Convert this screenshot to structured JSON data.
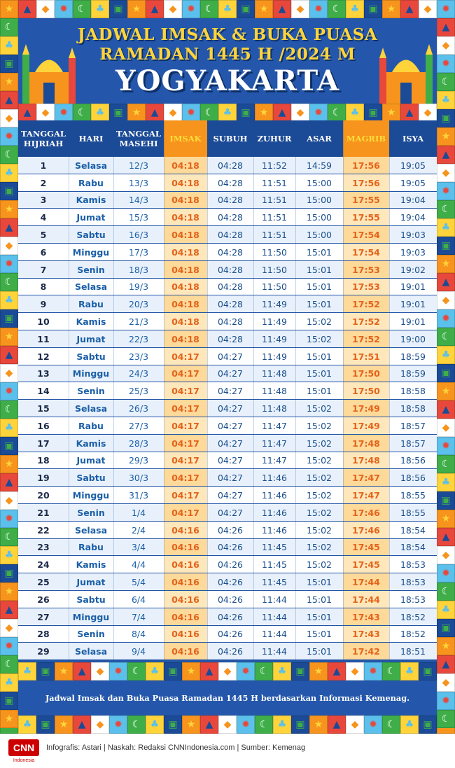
{
  "header": {
    "title_line1": "JADWAL IMSAK & BUKA PUASA",
    "title_line2": "RAMADAN 1445 H /2024 M",
    "city": "YOGYAKARTA"
  },
  "table": {
    "columns": [
      {
        "key": "hijri",
        "label": "TANGGAL\nHIJRIAH",
        "highlight": false
      },
      {
        "key": "hari",
        "label": "HARI",
        "highlight": false
      },
      {
        "key": "masehi",
        "label": "TANGGAL\nMASEHI",
        "highlight": false
      },
      {
        "key": "imsak",
        "label": "IMSAK",
        "highlight": true
      },
      {
        "key": "subuh",
        "label": "SUBUH",
        "highlight": false
      },
      {
        "key": "zuhur",
        "label": "ZUHUR",
        "highlight": false
      },
      {
        "key": "asar",
        "label": "ASAR",
        "highlight": false
      },
      {
        "key": "magrib",
        "label": "MAGRIB",
        "highlight": true
      },
      {
        "key": "isya",
        "label": "ISYA",
        "highlight": false
      }
    ],
    "rows": [
      [
        "1",
        "Selasa",
        "12/3",
        "04:18",
        "04:28",
        "11:52",
        "14:59",
        "17:56",
        "19:05"
      ],
      [
        "2",
        "Rabu",
        "13/3",
        "04:18",
        "04:28",
        "11:51",
        "15:00",
        "17:56",
        "19:05"
      ],
      [
        "3",
        "Kamis",
        "14/3",
        "04:18",
        "04:28",
        "11:51",
        "15:00",
        "17:55",
        "19:04"
      ],
      [
        "4",
        "Jumat",
        "15/3",
        "04:18",
        "04:28",
        "11:51",
        "15:00",
        "17:55",
        "19:04"
      ],
      [
        "5",
        "Sabtu",
        "16/3",
        "04:18",
        "04:28",
        "11:51",
        "15:00",
        "17:54",
        "19:03"
      ],
      [
        "6",
        "Minggu",
        "17/3",
        "04:18",
        "04:28",
        "11:50",
        "15:01",
        "17:54",
        "19:03"
      ],
      [
        "7",
        "Senin",
        "18/3",
        "04:18",
        "04:28",
        "11:50",
        "15:01",
        "17:53",
        "19:02"
      ],
      [
        "8",
        "Selasa",
        "19/3",
        "04:18",
        "04:28",
        "11:50",
        "15:01",
        "17:53",
        "19:01"
      ],
      [
        "9",
        "Rabu",
        "20/3",
        "04:18",
        "04:28",
        "11:49",
        "15:01",
        "17:52",
        "19:01"
      ],
      [
        "10",
        "Kamis",
        "21/3",
        "04:18",
        "04:28",
        "11:49",
        "15:02",
        "17:52",
        "19:01"
      ],
      [
        "11",
        "Jumat",
        "22/3",
        "04:18",
        "04:28",
        "11:49",
        "15:02",
        "17:52",
        "19:00"
      ],
      [
        "12",
        "Sabtu",
        "23/3",
        "04:17",
        "04:27",
        "11:49",
        "15:01",
        "17:51",
        "18:59"
      ],
      [
        "13",
        "Minggu",
        "24/3",
        "04:17",
        "04:27",
        "11:48",
        "15:01",
        "17:50",
        "18:59"
      ],
      [
        "14",
        "Senin",
        "25/3",
        "04:17",
        "04:27",
        "11:48",
        "15:01",
        "17:50",
        "18:58"
      ],
      [
        "15",
        "Selasa",
        "26/3",
        "04:17",
        "04:27",
        "11:48",
        "15:02",
        "17:49",
        "18:58"
      ],
      [
        "16",
        "Rabu",
        "27/3",
        "04:17",
        "04:27",
        "11:47",
        "15:02",
        "17:49",
        "18:57"
      ],
      [
        "17",
        "Kamis",
        "28/3",
        "04:17",
        "04:27",
        "11:47",
        "15:02",
        "17:48",
        "18:57"
      ],
      [
        "18",
        "Jumat",
        "29/3",
        "04:17",
        "04:27",
        "11:47",
        "15:02",
        "17:48",
        "18:56"
      ],
      [
        "19",
        "Sabtu",
        "30/3",
        "04:17",
        "04:27",
        "11:46",
        "15:02",
        "17:47",
        "18:56"
      ],
      [
        "20",
        "Minggu",
        "31/3",
        "04:17",
        "04:27",
        "11:46",
        "15:02",
        "17:47",
        "18:55"
      ],
      [
        "21",
        "Senin",
        "1/4",
        "04:17",
        "04:27",
        "11:46",
        "15:02",
        "17:46",
        "18:55"
      ],
      [
        "22",
        "Selasa",
        "2/4",
        "04:16",
        "04:26",
        "11:46",
        "15:02",
        "17:46",
        "18:54"
      ],
      [
        "23",
        "Rabu",
        "3/4",
        "04:16",
        "04:26",
        "11:45",
        "15:02",
        "17:45",
        "18:54"
      ],
      [
        "24",
        "Kamis",
        "4/4",
        "04:16",
        "04:26",
        "11:45",
        "15:02",
        "17:45",
        "18:53"
      ],
      [
        "25",
        "Jumat",
        "5/4",
        "04:16",
        "04:26",
        "11:45",
        "15:01",
        "17:44",
        "18:53"
      ],
      [
        "26",
        "Sabtu",
        "6/4",
        "04:16",
        "04:26",
        "11:44",
        "15:01",
        "17:44",
        "18:53"
      ],
      [
        "27",
        "Minggu",
        "7/4",
        "04:16",
        "04:26",
        "11:44",
        "15:01",
        "17:43",
        "18:52"
      ],
      [
        "28",
        "Senin",
        "8/4",
        "04:16",
        "04:26",
        "11:44",
        "15:01",
        "17:43",
        "18:52"
      ],
      [
        "29",
        "Selasa",
        "9/4",
        "04:16",
        "04:26",
        "11:44",
        "15:01",
        "17:42",
        "18:51"
      ]
    ]
  },
  "note": "Jadwal Imsak dan Buka Puasa Ramadan 1445 H berdasarkan Informasi Kemenag.",
  "footer": {
    "logo_text": "CNN",
    "logo_subtext": "Indonesia",
    "credits": "Infografis: Astari | Naskah: Redaksi CNNIndonesia.com | Sumber: Kemenag"
  },
  "colors": {
    "frame_blue": "#1f5fb0",
    "title_yellow": "#ffd43b",
    "highlight_orange": "#f7941d",
    "time_orange": "#e4631a",
    "cnn_red": "#cc0000"
  },
  "decor_icons": [
    "star-icon",
    "crescent-icon",
    "mosque-icon",
    "palm-tree-icon",
    "diamond-icon",
    "lantern-icon",
    "sun-icon"
  ]
}
